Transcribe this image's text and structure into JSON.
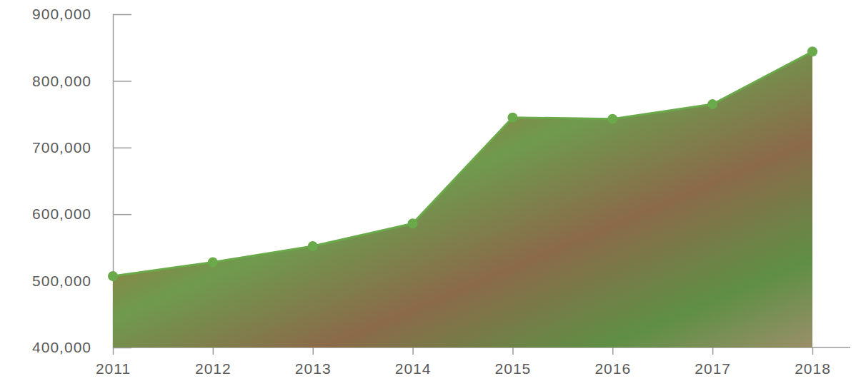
{
  "chart_data": {
    "type": "area",
    "categories": [
      "2011",
      "2012",
      "2013",
      "2014",
      "2015",
      "2016",
      "2017",
      "2018"
    ],
    "values": [
      507000,
      528000,
      552000,
      586000,
      745000,
      743000,
      765000,
      844000
    ],
    "color": "#6aaa4a",
    "marker": "circle",
    "ylim": [
      400000,
      900000
    ],
    "yticks": [
      {
        "value": 400000,
        "label": "400,000"
      },
      {
        "value": 500000,
        "label": "500,000"
      },
      {
        "value": 600000,
        "label": "600,000"
      },
      {
        "value": 700000,
        "label": "700,000"
      },
      {
        "value": 800000,
        "label": "800,000"
      },
      {
        "value": 900000,
        "label": "900,000"
      }
    ],
    "grid": false
  }
}
